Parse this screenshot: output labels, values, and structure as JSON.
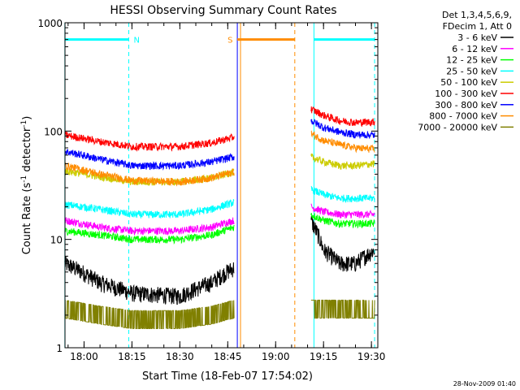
{
  "chart_data": {
    "type": "line",
    "title": "HESSI Observing Summary Count Rates",
    "xlabel": "Start Time (18-Feb-07 17:54:02)",
    "ylabel": "Count Rate (s⁻¹ detector⁻¹)",
    "y_scale": "log",
    "ylim": [
      1,
      1000
    ],
    "xlim": [
      "17:54:02",
      "19:32:00"
    ],
    "x_ticks": [
      "18:00",
      "18:15",
      "18:30",
      "18:45",
      "19:00",
      "19:15",
      "19:30"
    ],
    "y_ticks": [
      "1",
      "10",
      "100",
      "1000"
    ],
    "legend_header": [
      "Det 1,3,4,5,6,9,",
      "FDecim 1, Att 0"
    ],
    "legend_position": "top-right outside",
    "timestamp": "28-Nov-2009 01:40",
    "series": [
      {
        "name": "3 - 6 keV",
        "color": "#000000",
        "x": [
          "17:54",
          "18:05",
          "18:15",
          "18:30",
          "18:40",
          "18:47",
          "19:11",
          "19:15",
          "19:20",
          "19:25",
          "19:31"
        ],
        "y": [
          6,
          4,
          3.2,
          3.0,
          4,
          5.5,
          15,
          8,
          6,
          6,
          8
        ]
      },
      {
        "name": "6 - 12 keV",
        "color": "#ff00ff",
        "x": [
          "17:54",
          "18:05",
          "18:15",
          "18:30",
          "18:40",
          "18:47",
          "19:11",
          "19:15",
          "19:20",
          "19:25",
          "19:31"
        ],
        "y": [
          15,
          13,
          12,
          12,
          13,
          15,
          20,
          18,
          17,
          17,
          17
        ]
      },
      {
        "name": "12 - 25 keV",
        "color": "#00ff00",
        "x": [
          "17:54",
          "18:05",
          "18:15",
          "18:30",
          "18:40",
          "18:47",
          "19:11",
          "19:15",
          "19:20",
          "19:25",
          "19:31"
        ],
        "y": [
          12,
          11,
          10,
          10,
          11,
          13,
          17,
          15,
          14,
          14,
          14
        ]
      },
      {
        "name": "25 - 50 keV",
        "color": "#00ffff",
        "x": [
          "17:54",
          "18:05",
          "18:15",
          "18:30",
          "18:40",
          "18:47",
          "19:11",
          "19:15",
          "19:20",
          "19:25",
          "19:31"
        ],
        "y": [
          21,
          19,
          17,
          17,
          19,
          22,
          29,
          26,
          24,
          24,
          24
        ]
      },
      {
        "name": "50 - 100 keV",
        "color": "#cccc00",
        "x": [
          "17:54",
          "18:05",
          "18:15",
          "18:30",
          "18:40",
          "18:47",
          "19:11",
          "19:15",
          "19:20",
          "19:25",
          "19:31"
        ],
        "y": [
          43,
          38,
          34,
          34,
          37,
          42,
          58,
          52,
          48,
          48,
          50
        ]
      },
      {
        "name": "100 - 300 keV",
        "color": "#ff0000",
        "x": [
          "17:54",
          "18:05",
          "18:15",
          "18:30",
          "18:40",
          "18:47",
          "19:11",
          "19:15",
          "19:20",
          "19:25",
          "19:31"
        ],
        "y": [
          92,
          80,
          72,
          72,
          78,
          88,
          160,
          140,
          125,
          120,
          122
        ]
      },
      {
        "name": "300 - 800 keV",
        "color": "#0000ff",
        "x": [
          "17:54",
          "18:05",
          "18:15",
          "18:30",
          "18:40",
          "18:47",
          "19:11",
          "19:15",
          "19:20",
          "19:25",
          "19:31"
        ],
        "y": [
          65,
          55,
          48,
          48,
          52,
          58,
          125,
          108,
          98,
          93,
          92
        ]
      },
      {
        "name": "800 - 7000 keV",
        "color": "#ff8c00",
        "x": [
          "17:54",
          "18:05",
          "18:15",
          "18:30",
          "18:40",
          "18:47",
          "19:11",
          "19:15",
          "19:20",
          "19:25",
          "19:31"
        ],
        "y": [
          48,
          40,
          35,
          34,
          37,
          42,
          95,
          82,
          75,
          70,
          68
        ]
      },
      {
        "name": "7000 - 20000 keV",
        "color": "#808000",
        "x": [
          "17:54",
          "18:05",
          "18:15",
          "18:30",
          "18:40",
          "18:47",
          "19:11",
          "19:15",
          "19:20",
          "19:25",
          "19:31"
        ],
        "y": [
          2.5,
          2.2,
          2.0,
          2.0,
          2.2,
          2.5,
          2.5,
          2.5,
          2.5,
          2.5,
          2.5
        ]
      }
    ],
    "annotations": [
      {
        "label": "N",
        "color": "#00ffff",
        "start": "17:54",
        "end": "18:14",
        "y": 700
      },
      {
        "label": "S",
        "color": "#ff8c00",
        "start": "18:48",
        "end": "19:06",
        "y": 700
      },
      {
        "label": "",
        "color": "#00ffff",
        "start": "19:12",
        "end": "19:31",
        "y": 700
      }
    ],
    "markers": [
      {
        "time": "17:54",
        "color": "#00ffff",
        "style": "solid"
      },
      {
        "time": "18:14",
        "color": "#00ffff",
        "style": "dashed"
      },
      {
        "time": "18:48",
        "color": "#0000ff",
        "style": "solid"
      },
      {
        "time": "18:49",
        "color": "#ff8c00",
        "style": "solid"
      },
      {
        "time": "19:06",
        "color": "#ff8c00",
        "style": "dashed"
      },
      {
        "time": "19:12",
        "color": "#00ffff",
        "style": "solid"
      },
      {
        "time": "19:31",
        "color": "#00ffff",
        "style": "dashed"
      }
    ],
    "data_gap": {
      "start": "18:48",
      "end": "19:11"
    }
  }
}
